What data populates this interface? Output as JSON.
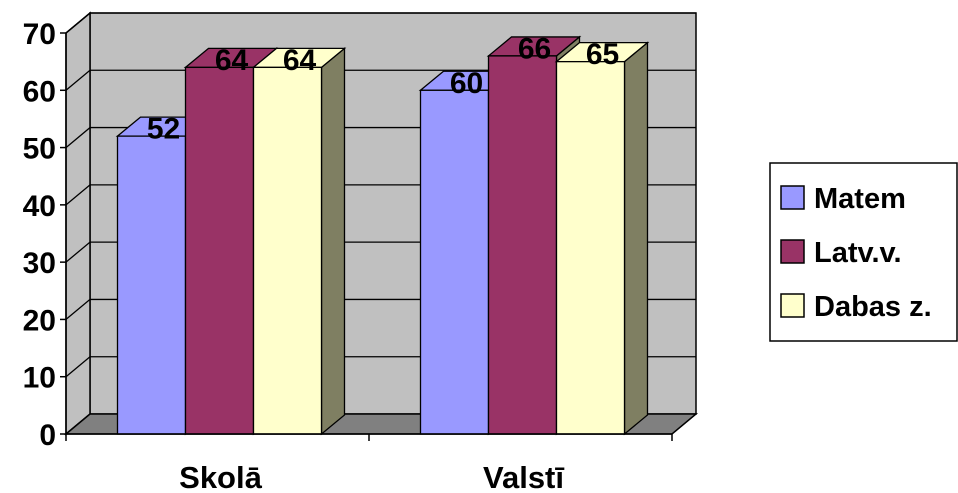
{
  "chart_data": {
    "type": "bar",
    "categories": [
      "Skolā",
      "Valstī"
    ],
    "series": [
      {
        "name": "Matem",
        "values": [
          52,
          60
        ]
      },
      {
        "name": "Latv.v.",
        "values": [
          64,
          66
        ]
      },
      {
        "name": "Dabas z.",
        "values": [
          64,
          65
        ]
      }
    ],
    "ylim": [
      0,
      70
    ],
    "yticks": [
      0,
      10,
      20,
      30,
      40,
      50,
      60,
      70
    ],
    "ytick_labels": [
      "0",
      "10",
      "20",
      "30",
      "40",
      "50",
      "60",
      "70"
    ],
    "data_labels": [
      [
        "52",
        "60"
      ],
      [
        "64",
        "66"
      ],
      [
        "64",
        "65"
      ]
    ],
    "grid": true,
    "three_d": true,
    "legend": "right",
    "colors": {
      "series": [
        "#9999FF",
        "#993366",
        "#FFFFCC"
      ],
      "wall": "#C0C0C0",
      "floor": "#808080",
      "bar_side": "#7F7F62"
    }
  }
}
